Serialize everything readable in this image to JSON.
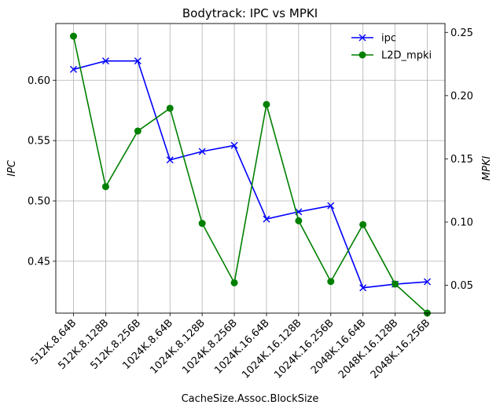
{
  "chart_data": {
    "type": "line",
    "title": "Bodytrack: IPC vs MPKI",
    "xlabel": "CacheSize.Assoc.BlockSize",
    "ylabel_left": "IPC",
    "ylabel_right": "MPKI",
    "categories": [
      "512K.8.64B",
      "512K.8.128B",
      "512K.8.256B",
      "1024K.8.64B",
      "1024K.8.128B",
      "1024K.8.256B",
      "1024K.16.64B",
      "1024K.16.128B",
      "1024K.16.256B",
      "2048K.16.64B",
      "2048K.16.128B",
      "2048K.16.256B"
    ],
    "ylim_left": [
      0.407,
      0.647
    ],
    "ylim_right": [
      0.028,
      0.257
    ],
    "yticks_left": [
      0.45,
      0.5,
      0.55,
      0.6
    ],
    "ytick_labels_left": [
      "0.45",
      "0.50",
      "0.55",
      "0.60"
    ],
    "yticks_right": [
      0.05,
      0.1,
      0.15,
      0.2,
      0.25
    ],
    "ytick_labels_right": [
      "0.05",
      "0.10",
      "0.15",
      "0.20",
      "0.25"
    ],
    "grid": true,
    "legend_placement": "top-right",
    "series": [
      {
        "name": "ipc",
        "axis": "left",
        "color": "#0000ff",
        "marker": "x",
        "values": [
          0.609,
          0.616,
          0.616,
          0.534,
          0.541,
          0.546,
          0.485,
          0.491,
          0.496,
          0.428,
          0.431,
          0.433
        ]
      },
      {
        "name": "L2D_mpki",
        "axis": "right",
        "color": "#008000",
        "marker": "o",
        "values": [
          0.247,
          0.128,
          0.172,
          0.19,
          0.099,
          0.052,
          0.193,
          0.101,
          0.053,
          0.098,
          0.051,
          0.028
        ]
      }
    ]
  }
}
